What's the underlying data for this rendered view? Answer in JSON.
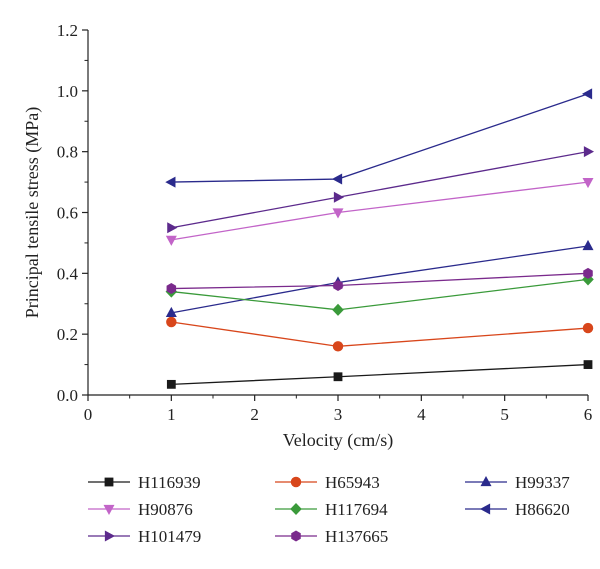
{
  "chart_data": {
    "type": "line",
    "xlabel": "Velocity (cm/s)",
    "ylabel": "Principal tensile stress (MPa)",
    "xlim": [
      0,
      6
    ],
    "ylim": [
      0,
      1.2
    ],
    "x_ticks": [
      "0",
      "1",
      "2",
      "3",
      "4",
      "5",
      "6"
    ],
    "y_ticks": [
      "0.0",
      "0.2",
      "0.4",
      "0.6",
      "0.8",
      "1.0",
      "1.2"
    ],
    "grid": false,
    "legend_position": "bottom",
    "x": [
      1,
      3,
      6
    ],
    "series": [
      {
        "name": "H116939",
        "values": [
          0.035,
          0.06,
          0.1
        ],
        "color": "#1a1a1a",
        "marker": "square"
      },
      {
        "name": "H65943",
        "values": [
          0.24,
          0.16,
          0.22
        ],
        "color": "#d8461b",
        "marker": "circle"
      },
      {
        "name": "H99337",
        "values": [
          0.27,
          0.37,
          0.49
        ],
        "color": "#2a2a8c",
        "marker": "triangle-up"
      },
      {
        "name": "H90876",
        "values": [
          0.51,
          0.6,
          0.7
        ],
        "color": "#c264c8",
        "marker": "triangle-down"
      },
      {
        "name": "H117694",
        "values": [
          0.34,
          0.28,
          0.38
        ],
        "color": "#3a9a3a",
        "marker": "diamond"
      },
      {
        "name": "H86620",
        "values": [
          0.7,
          0.71,
          0.99
        ],
        "color": "#2a2a8c",
        "marker": "triangle-left"
      },
      {
        "name": "H101479",
        "values": [
          0.55,
          0.65,
          0.8
        ],
        "color": "#5c2a8c",
        "marker": "triangle-right"
      },
      {
        "name": "H137665",
        "values": [
          0.35,
          0.36,
          0.4
        ],
        "color": "#7a2a8c",
        "marker": "hexagon"
      }
    ]
  }
}
